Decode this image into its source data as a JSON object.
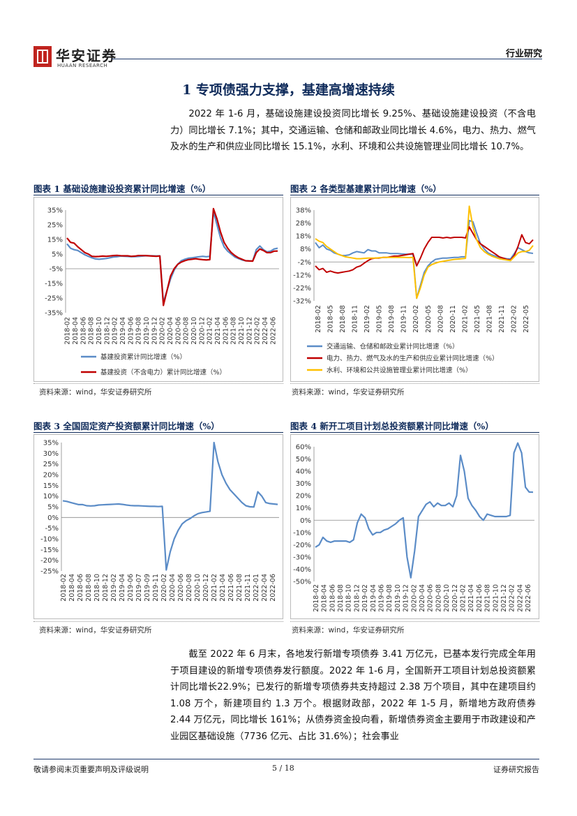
{
  "header": {
    "logo_cn": "华安证券",
    "logo_en": "HUAAN RESEARCH",
    "section": "行业研究"
  },
  "title": "1 专项债强力支撑，基建高增速持续",
  "paragraph1": "2022 年 1-6 月，基础设施建设投资同比增长 9.25%、基础设施建设投资（不含电力）同比增长 7.1%；其中，交通运输、仓储和邮政业同比增长 4.6%，电力、热力、燃气及水的生产和供应业同比增长 15.1%，水利、环境和公共设施管理业同比增长 10.7%。",
  "paragraph2": "截至 2022 年 6 月末，各地发行新增专项债券 3.41 万亿元，已基本发行完成全年用于项目建设的新增专项债券发行额度。2022 年 1-6 月，全国新开工项目计划总投资额累计同比增长22.9%；已发行的新增专项债券共支持超过 2.38 万个项目，其中在建项目约 1.08 万个，新建项目约 1.3 万个。根据财政部，2022 年 1-5 月，新增地方政府债券 2.44 万亿元，同比增长 161%；从债券资金投向看，新增债券资金主要用于市政建设和产业园区基础设施（7736 亿元、占比 31.6%）；社会事业",
  "figures": {
    "fig1": {
      "title": "图表 1  基础设施建设投资累计同比增速（%）",
      "source": "资料来源：wind，华安证券研究所"
    },
    "fig2": {
      "title": "图表 2  各类型基建累计同比增速（%）",
      "source": "资料来源：wind，华安证券研究所"
    },
    "fig3": {
      "title": "图表 3  全国固定资产投资额累计同比增速（%）",
      "source": "资料来源：wind，华安证券研究所"
    },
    "fig4": {
      "title": "图表 4  新开工项目计划总投资额累计同比增速（%）",
      "source": "资料来源：wind，华安证券研究所"
    }
  },
  "footer": {
    "left": "敬请参阅末页重要声明及评级说明",
    "center": "5 / 18",
    "right": "证券研究报告"
  },
  "colors": {
    "blue": "#5b8cc7",
    "red": "#c00000",
    "yellow": "#ffc000",
    "navy": "#0e2a5a"
  },
  "chart_data": [
    {
      "type": "line",
      "title": "",
      "yticks": [
        "35%",
        "25%",
        "15%",
        "5%",
        "-5%",
        "-15%",
        "-25%",
        "-35%"
      ],
      "ylim": [
        -35,
        35
      ],
      "xticks": [
        "2018-02",
        "2018-04",
        "2018-06",
        "2018-08",
        "2018-10",
        "2018-12",
        "2019-02",
        "2019-04",
        "2019-06",
        "2019-08",
        "2019-10",
        "2019-12",
        "2020-02",
        "2020-04",
        "2020-06",
        "2020-08",
        "2020-10",
        "2020-12",
        "2021-02",
        "2021-04",
        "2021-06",
        "2021-08",
        "2021-10",
        "2021-12",
        "2022-02",
        "2022-04",
        "2022-06"
      ],
      "series": [
        {
          "name": "基建投资累计同比增速（%）",
          "color": "#5b8cc7",
          "values": [
            12,
            9,
            8,
            7.5,
            6,
            4.5,
            3.5,
            2.5,
            1.7,
            1.5,
            1.7,
            2,
            2.5,
            3,
            3.2,
            3.6,
            3.5,
            3.4,
            3.2,
            3.3,
            3.4,
            3.6,
            3.8,
            3.8,
            3.8,
            3.7,
            3.8,
            -28,
            -20,
            -12,
            -6,
            -2,
            0.5,
            1.5,
            2.2,
            2.5,
            2.8,
            3.2,
            3.5,
            3.2,
            3.5,
            34,
            25,
            16,
            10,
            7,
            5,
            3,
            2,
            1,
            0.5,
            0.4,
            0.3,
            8,
            10.5,
            8,
            6.5,
            7,
            8.5,
            9
          ]
        },
        {
          "name": "基建投资（不含电力）累计同比增速（%）",
          "color": "#c00000",
          "values": [
            16,
            13,
            12.5,
            10,
            8,
            6,
            5,
            3.5,
            3.3,
            3.4,
            3.6,
            3.5,
            3.7,
            4,
            4.1,
            3.9,
            3.8,
            3.8,
            3.5,
            3.6,
            4,
            4,
            4,
            3.8,
            3.6,
            3.5,
            3.7,
            -30,
            -20,
            -10,
            -5,
            -2,
            -0.5,
            0.5,
            1.2,
            1.5,
            1.8,
            1.5,
            1.2,
            1,
            1.2,
            36,
            29,
            20,
            13,
            9,
            6,
            4,
            2.5,
            1.5,
            0.5,
            0.3,
            0.2,
            6,
            8.5,
            7.5,
            6,
            6,
            7,
            7.1
          ]
        }
      ]
    },
    {
      "type": "line",
      "title": "",
      "yticks": [
        "38%",
        "28%",
        "18%",
        "8%",
        "-2%",
        "-12%",
        "-22%",
        "-32%"
      ],
      "ylim": [
        -32,
        38
      ],
      "xticks": [
        "2018-02",
        "2018-05",
        "2018-08",
        "2018-11",
        "2019-02",
        "2019-05",
        "2019-08",
        "2019-11",
        "2020-02",
        "2020-05",
        "2020-08",
        "2020-11",
        "2021-02",
        "2021-05",
        "2021-08",
        "2021-11",
        "2022-02",
        "2022-05"
      ],
      "series": [
        {
          "name": "交通运输、仓储和邮政业累计同比增速（%）",
          "color": "#5b8cc7",
          "values": [
            13,
            9,
            11,
            8,
            7,
            5,
            4,
            3,
            3,
            3.5,
            5,
            6,
            5.5,
            5,
            7.5,
            6.5,
            6.5,
            5,
            5,
            5,
            4.5,
            4.5,
            4.5,
            4.2,
            4,
            4,
            4,
            -30,
            -20,
            -10,
            -5,
            -2,
            0,
            0.5,
            1,
            1,
            1.2,
            1.5,
            1.5,
            2,
            2,
            30,
            29,
            20,
            12,
            8,
            5,
            3.5,
            2.5,
            1.5,
            1,
            0.5,
            0.3,
            4.5,
            9,
            7.5,
            6,
            5,
            4.6
          ]
        },
        {
          "name": "电力、热力、燃气及水的生产和供应业累计同比增速（%）",
          "color": "#c00000",
          "values": [
            -5,
            -8,
            -7,
            -10,
            -9,
            -10,
            -10.5,
            -10,
            -9.5,
            -9,
            -8,
            -6,
            -5,
            -3,
            -1,
            0.5,
            1,
            1,
            1.5,
            1.5,
            2,
            2.5,
            2.5,
            3,
            3.5,
            4,
            4.5,
            -5,
            1,
            8,
            13,
            17,
            17,
            17,
            16.5,
            17,
            16.5,
            17,
            17,
            17,
            16.5,
            25,
            20,
            15,
            12,
            10,
            8,
            6,
            4,
            2,
            1,
            0,
            -0.5,
            3,
            10,
            19,
            13,
            12,
            15.1
          ]
        },
        {
          "name": "水利、环境和公共设施管理业累计同比增速（%）",
          "color": "#ffc000",
          "values": [
            16,
            14,
            13,
            10,
            8,
            6,
            4,
            3,
            2,
            1.5,
            1,
            0.5,
            0.5,
            0.8,
            1,
            1,
            1,
            1.2,
            1.5,
            1.5,
            1.5,
            1.5,
            1.5,
            1.6,
            1.5,
            1.4,
            1.5,
            -30,
            -22,
            -12,
            -6,
            -4,
            -3,
            -2,
            -1.5,
            -1,
            -0.5,
            0,
            0.2,
            0.5,
            0.8,
            41,
            25,
            15,
            9,
            6,
            4,
            2.5,
            1.5,
            0.5,
            0,
            -0.5,
            -1,
            2,
            5,
            6,
            6,
            7,
            10.7
          ]
        }
      ]
    },
    {
      "type": "line",
      "title": "",
      "yticks": [
        "35%",
        "30%",
        "25%",
        "20%",
        "15%",
        "10%",
        "5%",
        "0%",
        "-5%",
        "-10%",
        "-15%",
        "-20%",
        "-25%"
      ],
      "ylim": [
        -25,
        35
      ],
      "xticks": [
        "2018-02",
        "2018-04",
        "2018-06",
        "2018-08",
        "2018-10",
        "2018-12",
        "2019-02",
        "2019-04",
        "2019-06",
        "2019-07",
        "2019-09",
        "2019-11",
        "2020-02",
        "2020-04",
        "2020-06",
        "2020-08",
        "2020-10",
        "2020-12",
        "2021-02",
        "2021-04",
        "2021-06",
        "2021-08",
        "2021-11",
        "2022-01",
        "2022-04",
        "2022-06"
      ],
      "series": [
        {
          "name": "全国固定资产投资额累计同比增速（%）",
          "color": "#5b8cc7",
          "values": [
            7.8,
            7.5,
            7,
            6.5,
            6,
            6,
            5.5,
            5.4,
            5.5,
            5.8,
            5.9,
            6,
            6.1,
            6.2,
            6.3,
            6.1,
            5.8,
            5.6,
            5.5,
            5.5,
            5.4,
            5.3,
            5.2,
            5.2,
            5.1,
            5.2,
            -24.5,
            -16,
            -10,
            -6,
            -3,
            -1.5,
            -0.5,
            0.8,
            1.8,
            2.3,
            2.6,
            2.9,
            35,
            26,
            20,
            16,
            13,
            11,
            9,
            7,
            5.5,
            5,
            4.9,
            12,
            10,
            7,
            6.5,
            6.3,
            6.1
          ]
        }
      ]
    },
    {
      "type": "line",
      "title": "",
      "yticks": [
        "60%",
        "50%",
        "40%",
        "30%",
        "20%",
        "10%",
        "0%",
        "-10%",
        "-20%",
        "-30%",
        "-40%",
        "-50%"
      ],
      "ylim": [
        -50,
        60
      ],
      "xticks": [
        "2018-02",
        "2018-04",
        "2018-06",
        "2018-08",
        "2018-10",
        "2018-12",
        "2019-02",
        "2019-04",
        "2019-06",
        "2019-08",
        "2019-10",
        "2019-12",
        "2020-02",
        "2020-04",
        "2020-06",
        "2020-08",
        "2020-10",
        "2020-12",
        "2021-02",
        "2021-04",
        "2021-06",
        "2021-08",
        "2021-10",
        "2021-12",
        "2022-02",
        "2022-04",
        "2022-06"
      ],
      "series": [
        {
          "name": "新开工项目计划总投资额累计同比增速（%）",
          "color": "#5b8cc7",
          "values": [
            -22,
            -20,
            -14,
            -17,
            -18,
            -17,
            -17,
            -17,
            -17,
            -18,
            -16,
            -2,
            5,
            2,
            -7,
            -12,
            -10,
            -10,
            -8,
            -7,
            -5,
            -3,
            0,
            2,
            -30,
            -47,
            -25,
            3,
            8,
            13,
            15,
            11,
            14,
            12,
            12,
            14,
            11,
            20,
            53,
            40,
            18,
            12,
            8,
            3,
            0,
            5,
            4,
            3,
            3,
            3,
            3,
            4,
            55,
            63,
            55,
            27,
            23,
            22.9
          ]
        }
      ]
    }
  ]
}
